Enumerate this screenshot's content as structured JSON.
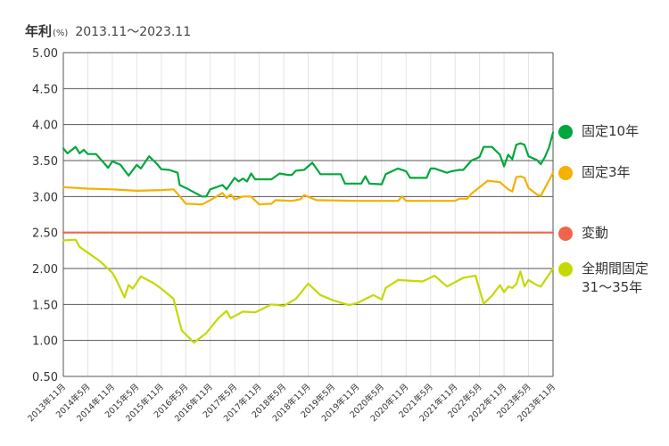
{
  "header": {
    "title": "年利",
    "unit": "(%)",
    "range": "2013.11〜2023.11"
  },
  "chart_data": {
    "type": "line",
    "ylim": [
      0.5,
      5.0
    ],
    "yticks": [
      "5.00",
      "4.50",
      "4.00",
      "3.50",
      "3.00",
      "2.50",
      "2.00",
      "1.50",
      "1.00",
      "0.50"
    ],
    "ytick_values": [
      5.0,
      4.5,
      4.0,
      3.5,
      3.0,
      2.5,
      2.0,
      1.5,
      1.0,
      0.5
    ],
    "xlim": [
      0,
      120
    ],
    "xticks": [
      {
        "label": "2013年11月",
        "x": 0
      },
      {
        "label": "2014年5月",
        "x": 6
      },
      {
        "label": "2014年11月",
        "x": 12
      },
      {
        "label": "2015年5月",
        "x": 18
      },
      {
        "label": "2015年11月",
        "x": 24
      },
      {
        "label": "2016年5月",
        "x": 30
      },
      {
        "label": "2016年11月",
        "x": 36
      },
      {
        "label": "2017年5月",
        "x": 42
      },
      {
        "label": "2017年11月",
        "x": 48
      },
      {
        "label": "2018年5月",
        "x": 54
      },
      {
        "label": "2018年11月",
        "x": 60
      },
      {
        "label": "2019年5月",
        "x": 66
      },
      {
        "label": "2019年11月",
        "x": 72
      },
      {
        "label": "2020年5月",
        "x": 78
      },
      {
        "label": "2020年11月",
        "x": 84
      },
      {
        "label": "2021年5月",
        "x": 90
      },
      {
        "label": "2021年11月",
        "x": 96
      },
      {
        "label": "2022年5月",
        "x": 102
      },
      {
        "label": "2022年11月",
        "x": 108
      },
      {
        "label": "2023年5月",
        "x": 114
      },
      {
        "label": "2023年11月",
        "x": 120
      }
    ],
    "grid": "vertical",
    "series": [
      {
        "name": "固定10年",
        "color": "#00a73c",
        "points": [
          [
            0,
            3.67
          ],
          [
            1,
            3.6
          ],
          [
            3,
            3.69
          ],
          [
            4,
            3.6
          ],
          [
            5,
            3.65
          ],
          [
            6,
            3.59
          ],
          [
            8,
            3.59
          ],
          [
            11,
            3.4
          ],
          [
            12,
            3.49
          ],
          [
            14,
            3.44
          ],
          [
            16,
            3.29
          ],
          [
            18,
            3.44
          ],
          [
            19,
            3.39
          ],
          [
            21,
            3.56
          ],
          [
            23,
            3.45
          ],
          [
            24,
            3.38
          ],
          [
            26,
            3.37
          ],
          [
            28,
            3.33
          ],
          [
            28.5,
            3.16
          ],
          [
            30,
            3.12
          ],
          [
            34,
            3.0
          ],
          [
            35,
            3.0
          ],
          [
            36,
            3.1
          ],
          [
            39,
            3.16
          ],
          [
            40,
            3.1
          ],
          [
            42,
            3.26
          ],
          [
            43,
            3.21
          ],
          [
            44,
            3.25
          ],
          [
            45,
            3.21
          ],
          [
            46,
            3.32
          ],
          [
            47,
            3.24
          ],
          [
            51,
            3.24
          ],
          [
            53,
            3.32
          ],
          [
            55,
            3.3
          ],
          [
            56,
            3.3
          ],
          [
            57,
            3.36
          ],
          [
            59,
            3.37
          ],
          [
            61,
            3.47
          ],
          [
            63,
            3.31
          ],
          [
            68,
            3.31
          ],
          [
            69,
            3.18
          ],
          [
            73,
            3.18
          ],
          [
            74,
            3.28
          ],
          [
            75,
            3.18
          ],
          [
            78,
            3.17
          ],
          [
            79,
            3.31
          ],
          [
            82,
            3.39
          ],
          [
            84,
            3.35
          ],
          [
            85,
            3.26
          ],
          [
            89,
            3.26
          ],
          [
            90,
            3.39
          ],
          [
            91,
            3.39
          ],
          [
            94,
            3.33
          ],
          [
            95,
            3.35
          ],
          [
            97,
            3.37
          ],
          [
            98,
            3.37
          ],
          [
            100,
            3.5
          ],
          [
            102,
            3.55
          ],
          [
            103,
            3.69
          ],
          [
            105,
            3.69
          ],
          [
            107,
            3.58
          ],
          [
            108,
            3.42
          ],
          [
            109,
            3.58
          ],
          [
            110,
            3.52
          ],
          [
            111,
            3.72
          ],
          [
            112,
            3.74
          ],
          [
            113,
            3.72
          ],
          [
            114,
            3.56
          ],
          [
            116,
            3.51
          ],
          [
            117,
            3.45
          ],
          [
            118,
            3.55
          ],
          [
            119,
            3.68
          ],
          [
            120,
            3.89
          ]
        ]
      },
      {
        "name": "固定3年",
        "color": "#f5b000",
        "points": [
          [
            0,
            3.13
          ],
          [
            6,
            3.11
          ],
          [
            12,
            3.1
          ],
          [
            18,
            3.08
          ],
          [
            24,
            3.09
          ],
          [
            27,
            3.1
          ],
          [
            28,
            3.04
          ],
          [
            30,
            2.9
          ],
          [
            34,
            2.89
          ],
          [
            36,
            2.95
          ],
          [
            39,
            3.05
          ],
          [
            40,
            2.98
          ],
          [
            41,
            3.03
          ],
          [
            42,
            2.96
          ],
          [
            44,
            3.0
          ],
          [
            46,
            3.0
          ],
          [
            48,
            2.89
          ],
          [
            51,
            2.9
          ],
          [
            52,
            2.95
          ],
          [
            56,
            2.94
          ],
          [
            58,
            2.96
          ],
          [
            59,
            3.02
          ],
          [
            62,
            2.95
          ],
          [
            72,
            2.94
          ],
          [
            78,
            2.94
          ],
          [
            82,
            2.94
          ],
          [
            83,
            3.0
          ],
          [
            84,
            2.94
          ],
          [
            96,
            2.94
          ],
          [
            97,
            2.97
          ],
          [
            99,
            2.97
          ],
          [
            100,
            3.04
          ],
          [
            104,
            3.22
          ],
          [
            107,
            3.2
          ],
          [
            109,
            3.1
          ],
          [
            110,
            3.07
          ],
          [
            111,
            3.27
          ],
          [
            112,
            3.28
          ],
          [
            113,
            3.26
          ],
          [
            114,
            3.12
          ],
          [
            116,
            3.03
          ],
          [
            117,
            3.01
          ],
          [
            120,
            3.33
          ]
        ]
      },
      {
        "name": "変動",
        "color": "#f0644a",
        "points": [
          [
            0,
            2.5
          ],
          [
            120,
            2.5
          ]
        ]
      },
      {
        "name": "全期間固定\n31〜35年",
        "color": "#c5d900",
        "points": [
          [
            0,
            2.39
          ],
          [
            3,
            2.4
          ],
          [
            4,
            2.3
          ],
          [
            6,
            2.22
          ],
          [
            9,
            2.1
          ],
          [
            12,
            1.94
          ],
          [
            13,
            1.84
          ],
          [
            15,
            1.6
          ],
          [
            16,
            1.77
          ],
          [
            17,
            1.72
          ],
          [
            19,
            1.89
          ],
          [
            22,
            1.8
          ],
          [
            24,
            1.72
          ],
          [
            27,
            1.58
          ],
          [
            29,
            1.14
          ],
          [
            32,
            0.97
          ],
          [
            35,
            1.1
          ],
          [
            38,
            1.31
          ],
          [
            40,
            1.41
          ],
          [
            41,
            1.31
          ],
          [
            44,
            1.4
          ],
          [
            47,
            1.39
          ],
          [
            51,
            1.5
          ],
          [
            54,
            1.48
          ],
          [
            57,
            1.58
          ],
          [
            60,
            1.79
          ],
          [
            63,
            1.63
          ],
          [
            66,
            1.56
          ],
          [
            70,
            1.49
          ],
          [
            72,
            1.52
          ],
          [
            76,
            1.63
          ],
          [
            78,
            1.57
          ],
          [
            79,
            1.73
          ],
          [
            82,
            1.84
          ],
          [
            88,
            1.82
          ],
          [
            91,
            1.9
          ],
          [
            94,
            1.75
          ],
          [
            98,
            1.87
          ],
          [
            101,
            1.9
          ],
          [
            103,
            1.51
          ],
          [
            105,
            1.62
          ],
          [
            107,
            1.77
          ],
          [
            108,
            1.67
          ],
          [
            109,
            1.75
          ],
          [
            110,
            1.73
          ],
          [
            111,
            1.78
          ],
          [
            112,
            1.96
          ],
          [
            113,
            1.75
          ],
          [
            114,
            1.84
          ],
          [
            116,
            1.77
          ],
          [
            117,
            1.75
          ],
          [
            120,
            2.0
          ]
        ]
      }
    ],
    "legend_position": "right"
  }
}
